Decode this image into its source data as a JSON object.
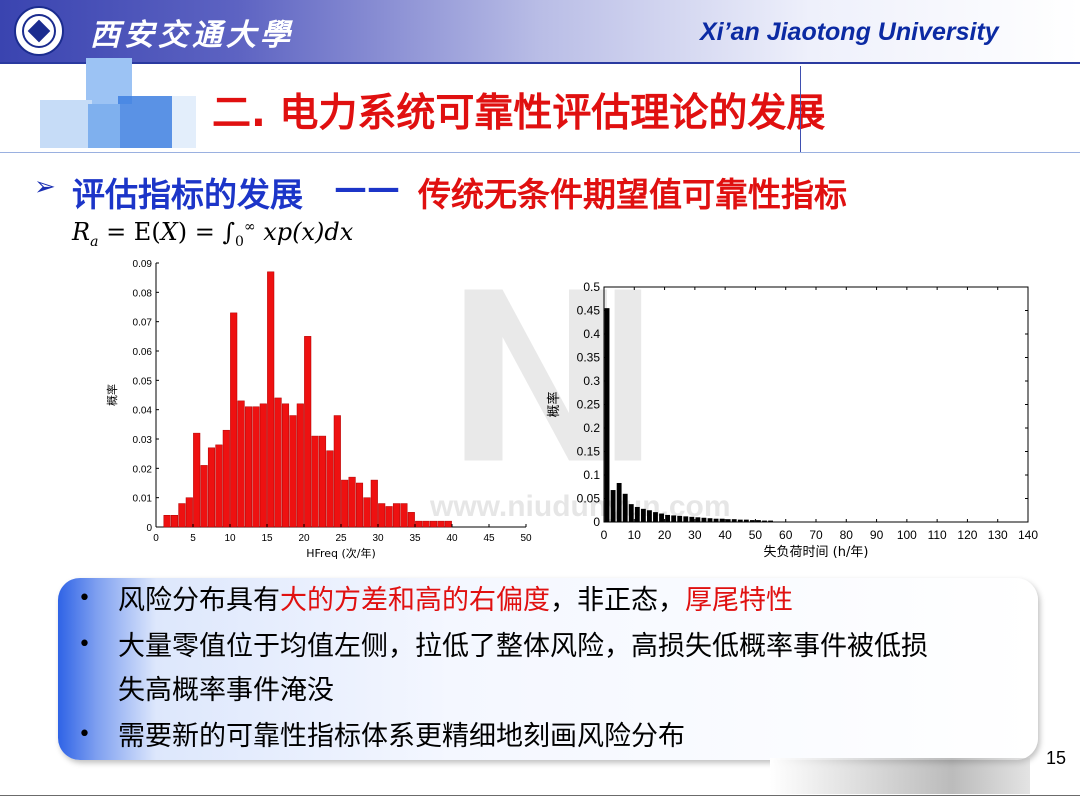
{
  "header": {
    "university_cn": "西安交通大學",
    "university_en": "Xi’an Jiaotong University"
  },
  "slide": {
    "title": "二. 电力系统可靠性评估理论的发展",
    "bullet_mark": "➢",
    "section_heading": "评估指标的发展",
    "section_dash": "——",
    "section_sub": "传统无条件期望值可靠性指标",
    "formula": {
      "lhs": "R",
      "lhs_sub": "a",
      "eq1": " = E(",
      "var": "X",
      "eq2": ") = ∫",
      "int_lower": "0",
      "int_upper": "∞",
      "integrand": " xp(x)dx"
    },
    "page_number": "15"
  },
  "watermark": {
    "text": "www.niudunyun.com"
  },
  "summary": {
    "bullet": "•",
    "line1": {
      "a": "风险分布具有",
      "b": "大的方差和高的右偏度",
      "c": "，非正态，",
      "d": "厚尾特性"
    },
    "line2": "大量零值位于均值左侧，拉低了整体风险，高损失低概率事件被低损",
    "line3": "失高概率事件淹没",
    "line4": "需要新的可靠性指标体系更精细地刻画风险分布"
  },
  "colors": {
    "accent_red": "#e01010",
    "heading_blue": "#1c35c8",
    "bar_red": "#ee1111",
    "bar_black": "#000000"
  },
  "chart_data": [
    {
      "type": "bar",
      "title": "",
      "xlabel": "HFreq (次/年)",
      "ylabel": "概率",
      "xlim": [
        0,
        50
      ],
      "ylim": [
        0,
        0.09
      ],
      "xticks": [
        "0",
        "5",
        "10",
        "15",
        "20",
        "25",
        "30",
        "35",
        "40",
        "45",
        "50"
      ],
      "yticks": [
        "0",
        "0.01",
        "0.02",
        "0.03",
        "0.04",
        "0.05",
        "0.06",
        "0.07",
        "0.08",
        "0.09"
      ],
      "bin_width": 1,
      "x": [
        1,
        2,
        3,
        4,
        5,
        6,
        7,
        8,
        9,
        10,
        11,
        12,
        13,
        14,
        15,
        16,
        17,
        18,
        19,
        20,
        21,
        22,
        23,
        24,
        25,
        26,
        27,
        28,
        29,
        30,
        31,
        32,
        33,
        34,
        35,
        36,
        37,
        38,
        39,
        40,
        41,
        42,
        43,
        44,
        45,
        46,
        47,
        48,
        49
      ],
      "values": [
        0.004,
        0.004,
        0.008,
        0.01,
        0.032,
        0.021,
        0.027,
        0.028,
        0.033,
        0.073,
        0.043,
        0.041,
        0.041,
        0.042,
        0.087,
        0.044,
        0.042,
        0.038,
        0.042,
        0.065,
        0.031,
        0.031,
        0.026,
        0.038,
        0.016,
        0.017,
        0.015,
        0.01,
        0.016,
        0.008,
        0.007,
        0.008,
        0.008,
        0.005,
        0.002,
        0.002,
        0.002,
        0.002,
        0.002,
        0,
        0,
        0,
        0,
        0,
        0,
        0,
        0,
        0,
        0
      ],
      "grid": false,
      "color": "#ee1111"
    },
    {
      "type": "bar",
      "title": "",
      "xlabel": "失负荷时间 (h/年)",
      "ylabel": "概率",
      "xlim": [
        0,
        140
      ],
      "ylim": [
        0,
        0.5
      ],
      "xticks": [
        "0",
        "10",
        "20",
        "30",
        "40",
        "50",
        "60",
        "70",
        "80",
        "90",
        "100",
        "110",
        "120",
        "130",
        "140"
      ],
      "yticks": [
        "0",
        "0.05",
        "0.1",
        "0.15",
        "0.2",
        "0.25",
        "0.3",
        "0.35",
        "0.4",
        "0.45",
        "0.5"
      ],
      "bin_width": 2,
      "x": [
        0,
        2,
        4,
        6,
        8,
        10,
        12,
        14,
        16,
        18,
        20,
        22,
        24,
        26,
        28,
        30,
        32,
        34,
        36,
        38,
        40,
        42,
        44,
        46,
        48,
        50,
        52,
        54
      ],
      "values": [
        0.455,
        0.068,
        0.083,
        0.06,
        0.038,
        0.032,
        0.028,
        0.025,
        0.021,
        0.018,
        0.015,
        0.014,
        0.013,
        0.012,
        0.011,
        0.01,
        0.009,
        0.008,
        0.007,
        0.007,
        0.006,
        0.006,
        0.005,
        0.005,
        0.004,
        0.004,
        0.003,
        0.003
      ],
      "grid": false,
      "color": "#000000"
    }
  ]
}
